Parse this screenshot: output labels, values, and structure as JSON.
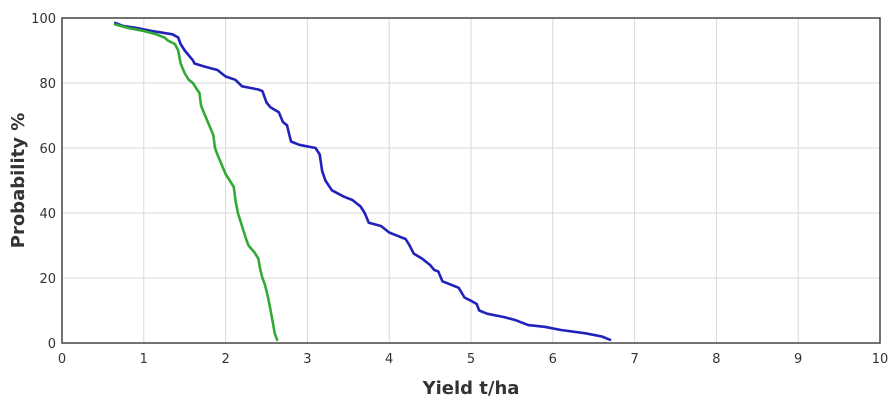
{
  "chart_data": {
    "type": "line",
    "title": "",
    "xlabel": "Yield t/ha",
    "ylabel": "Probability %",
    "xlim": [
      0,
      10
    ],
    "ylim": [
      0,
      100
    ],
    "xticks": [
      0,
      1,
      2,
      3,
      4,
      5,
      6,
      7,
      8,
      9,
      10
    ],
    "yticks": [
      0,
      20,
      40,
      60,
      80,
      100
    ],
    "grid": true,
    "legend": "none",
    "series": [
      {
        "color": "#2222bb",
        "points": [
          [
            0.65,
            98.5
          ],
          [
            0.75,
            97.5
          ],
          [
            0.9,
            97.0
          ],
          [
            1.1,
            96.0
          ],
          [
            1.35,
            95.0
          ],
          [
            1.42,
            94.0
          ],
          [
            1.45,
            92.0
          ],
          [
            1.5,
            90.0
          ],
          [
            1.6,
            87.0
          ],
          [
            1.62,
            86.0
          ],
          [
            1.75,
            85.0
          ],
          [
            1.9,
            84.0
          ],
          [
            2.0,
            82.0
          ],
          [
            2.12,
            81.0
          ],
          [
            2.2,
            79.0
          ],
          [
            2.3,
            78.5
          ],
          [
            2.4,
            78.0
          ],
          [
            2.45,
            77.5
          ],
          [
            2.5,
            74.0
          ],
          [
            2.55,
            72.5
          ],
          [
            2.65,
            71.0
          ],
          [
            2.7,
            68.0
          ],
          [
            2.75,
            67.0
          ],
          [
            2.8,
            62.0
          ],
          [
            2.9,
            61.0
          ],
          [
            3.1,
            60.0
          ],
          [
            3.15,
            58.0
          ],
          [
            3.18,
            53.0
          ],
          [
            3.22,
            50.0
          ],
          [
            3.3,
            47.0
          ],
          [
            3.45,
            45.0
          ],
          [
            3.55,
            44.0
          ],
          [
            3.65,
            42.0
          ],
          [
            3.7,
            40.0
          ],
          [
            3.75,
            37.0
          ],
          [
            3.9,
            36.0
          ],
          [
            4.0,
            34.0
          ],
          [
            4.1,
            33.0
          ],
          [
            4.2,
            32.0
          ],
          [
            4.25,
            30.0
          ],
          [
            4.3,
            27.5
          ],
          [
            4.4,
            26.0
          ],
          [
            4.5,
            24.0
          ],
          [
            4.55,
            22.5
          ],
          [
            4.6,
            22.0
          ],
          [
            4.65,
            19.0
          ],
          [
            4.75,
            18.0
          ],
          [
            4.85,
            17.0
          ],
          [
            4.92,
            14.0
          ],
          [
            5.0,
            13.0
          ],
          [
            5.07,
            12.0
          ],
          [
            5.1,
            10.0
          ],
          [
            5.2,
            9.0
          ],
          [
            5.4,
            8.0
          ],
          [
            5.55,
            7.0
          ],
          [
            5.6,
            6.5
          ],
          [
            5.7,
            5.5
          ],
          [
            5.9,
            5.0
          ],
          [
            6.1,
            4.0
          ],
          [
            6.4,
            3.0
          ],
          [
            6.6,
            2.0
          ],
          [
            6.7,
            1.0
          ]
        ]
      },
      {
        "color": "#33aa33",
        "points": [
          [
            0.65,
            98.0
          ],
          [
            0.8,
            97.0
          ],
          [
            1.0,
            96.0
          ],
          [
            1.15,
            95.0
          ],
          [
            1.25,
            94.0
          ],
          [
            1.3,
            93.0
          ],
          [
            1.38,
            92.0
          ],
          [
            1.42,
            90.0
          ],
          [
            1.45,
            86.0
          ],
          [
            1.5,
            83.0
          ],
          [
            1.55,
            81.0
          ],
          [
            1.6,
            80.0
          ],
          [
            1.65,
            78.0
          ],
          [
            1.68,
            77.0
          ],
          [
            1.7,
            73.0
          ],
          [
            1.75,
            70.0
          ],
          [
            1.8,
            67.0
          ],
          [
            1.85,
            64.0
          ],
          [
            1.87,
            60.0
          ],
          [
            1.9,
            58.0
          ],
          [
            1.95,
            55.0
          ],
          [
            2.0,
            52.0
          ],
          [
            2.05,
            50.0
          ],
          [
            2.1,
            48.0
          ],
          [
            2.12,
            44.0
          ],
          [
            2.15,
            40.0
          ],
          [
            2.2,
            36.0
          ],
          [
            2.25,
            32.0
          ],
          [
            2.28,
            30.0
          ],
          [
            2.35,
            28.0
          ],
          [
            2.4,
            26.0
          ],
          [
            2.42,
            23.0
          ],
          [
            2.45,
            20.0
          ],
          [
            2.48,
            18.0
          ],
          [
            2.52,
            14.0
          ],
          [
            2.55,
            10.0
          ],
          [
            2.58,
            6.0
          ],
          [
            2.6,
            3.0
          ],
          [
            2.63,
            1.0
          ]
        ]
      }
    ]
  }
}
